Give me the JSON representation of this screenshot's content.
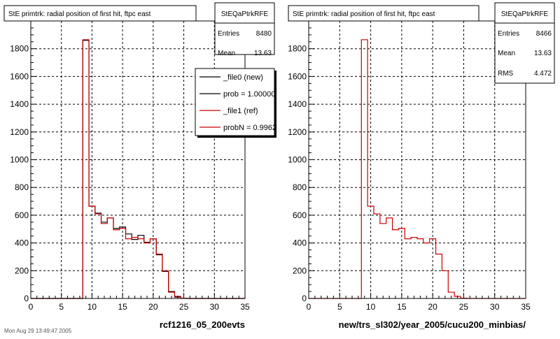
{
  "footer_text": "Mon Aug 29 13:49:47 2005",
  "chart_data": [
    {
      "type": "histogram",
      "title": "StE primtrk: radial position of first hit, ftpc east",
      "xlabel": "rcf1216_05_200evts",
      "ylabel": "",
      "xlim": [
        0,
        35
      ],
      "ylim": [
        0,
        2000
      ],
      "xticks": [
        "0",
        "5",
        "10",
        "15",
        "20",
        "25",
        "30",
        "35"
      ],
      "yticks": [
        "0",
        "200",
        "400",
        "600",
        "800",
        "1000",
        "1200",
        "1400",
        "1600",
        "1800"
      ],
      "grid": true,
      "bin_edges": [
        7.5,
        8.5,
        9.5,
        10.5,
        11.5,
        12.5,
        13.5,
        14.5,
        15.5,
        16.5,
        17.5,
        18.5,
        19.5,
        20.5,
        21.5,
        22.5,
        23.5,
        24.5,
        25.5,
        26.5
      ],
      "series": [
        {
          "name": "_file0 (new)",
          "color": "#000000",
          "values": [
            0,
            1860,
            665,
            615,
            550,
            580,
            505,
            515,
            465,
            425,
            455,
            405,
            430,
            315,
            195,
            50,
            10,
            2,
            0
          ]
        },
        {
          "name": "_file1 (ref)",
          "color": "#cc0000",
          "values": [
            0,
            1865,
            665,
            610,
            540,
            580,
            495,
            505,
            430,
            440,
            430,
            400,
            430,
            320,
            200,
            45,
            15,
            2,
            0
          ]
        }
      ],
      "stats": {
        "name": "StEQaPtrkRFE",
        "rows": [
          {
            "label": "Entries",
            "value": "8480"
          },
          {
            "label": "Mean",
            "value": "13.63"
          }
        ]
      },
      "legend": {
        "placement": "top-right",
        "entries": [
          {
            "text": "_file0 (new)",
            "color": "#000000"
          },
          {
            "text": "prob = 1.000000",
            "color": "#000000"
          },
          {
            "text": "_file1 (ref)",
            "color": "#cc0000"
          },
          {
            "text": "probN = 0.996222",
            "color": "#cc0000"
          }
        ]
      }
    },
    {
      "type": "histogram",
      "title": "StE primtrk: radial position of first hit, ftpc east",
      "xlabel": "new/trs_sl302/year_2005/cucu200_minbias/",
      "ylabel": "",
      "xlim": [
        0,
        35
      ],
      "ylim": [
        0,
        2000
      ],
      "xticks": [
        "0",
        "5",
        "10",
        "15",
        "20",
        "25",
        "30",
        "35"
      ],
      "yticks": [
        "0",
        "200",
        "400",
        "600",
        "800",
        "1000",
        "1200",
        "1400",
        "1600",
        "1800"
      ],
      "grid": true,
      "bin_edges": [
        7.5,
        8.5,
        9.5,
        10.5,
        11.5,
        12.5,
        13.5,
        14.5,
        15.5,
        16.5,
        17.5,
        18.5,
        19.5,
        20.5,
        21.5,
        22.5,
        23.5,
        24.5,
        25.5,
        26.5
      ],
      "series": [
        {
          "name": "",
          "color": "#cc0000",
          "values": [
            0,
            1865,
            665,
            610,
            540,
            580,
            495,
            505,
            430,
            440,
            430,
            400,
            430,
            320,
            200,
            45,
            15,
            2,
            0
          ]
        }
      ],
      "stats": {
        "name": "StEQaPtrkRFE",
        "rows": [
          {
            "label": "Entries",
            "value": "8466"
          },
          {
            "label": "Mean",
            "value": "13.63"
          },
          {
            "label": "RMS",
            "value": "4.472"
          }
        ]
      }
    }
  ]
}
